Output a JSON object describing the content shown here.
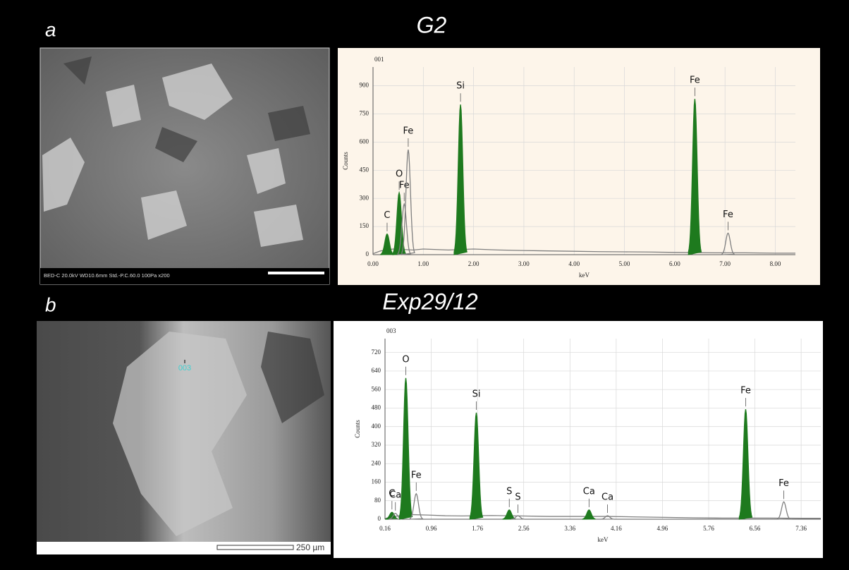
{
  "panels": [
    {
      "letter": "a",
      "title": "G2",
      "image_caption": "BED-C  20.0kV   WD10.6mm   Std.-P.C.60.0    100Pa      x200"
    },
    {
      "letter": "b",
      "title": "Exp29/12",
      "image_point": "003",
      "image_scale": "250 µm"
    }
  ],
  "chart_data": [
    {
      "type": "spectrum",
      "tag": "001",
      "x_label": "keV",
      "y_label": "Counts",
      "color": "#808080",
      "x": [
        0,
        0.15,
        0.4,
        0.8,
        1.0,
        1.5,
        2.0,
        2.5,
        3.0,
        3.5,
        4.0,
        4.5,
        5.0,
        5.5,
        6.0,
        6.8,
        7.4,
        8.0,
        8.4
      ],
      "values": [
        5,
        20,
        30,
        25,
        30,
        25,
        30,
        25,
        22,
        20,
        18,
        16,
        15,
        14,
        12,
        10,
        10,
        8,
        8
      ],
      "peaks": [
        {
          "label": "C",
          "x": 0.28,
          "y": 110,
          "color": "#1e7a1e"
        },
        {
          "label": "O",
          "x": 0.52,
          "y": 330,
          "color": "#1e7a1e"
        },
        {
          "label": "Fe",
          "x": 0.62,
          "y": 270,
          "color": "#808080"
        },
        {
          "label": "Fe",
          "x": 0.7,
          "y": 560,
          "color": "#808080"
        },
        {
          "label": "Si",
          "x": 1.74,
          "y": 800,
          "color": "#1e7a1e"
        },
        {
          "label": "Fe",
          "x": 6.4,
          "y": 830,
          "color": "#1e7a1e"
        },
        {
          "label": "Fe",
          "x": 7.06,
          "y": 115,
          "color": "#808080"
        }
      ],
      "xlim": [
        0,
        8.4
      ],
      "ylim": [
        0,
        1000
      ],
      "xticks": [
        {
          "value": 0,
          "label": "0.00"
        },
        {
          "value": 1,
          "label": "1.00"
        },
        {
          "value": 2,
          "label": "2.00"
        },
        {
          "value": 3,
          "label": "3.00"
        },
        {
          "value": 4,
          "label": "4.00"
        },
        {
          "value": 5,
          "label": "5.00"
        },
        {
          "value": 6,
          "label": "6.00"
        },
        {
          "value": 7,
          "label": "7.00"
        },
        {
          "value": 8,
          "label": "8.00"
        }
      ],
      "yticks": [
        0,
        150,
        300,
        450,
        600,
        750,
        900
      ],
      "grid": true
    },
    {
      "type": "spectrum",
      "tag": "003",
      "x_label": "keV",
      "y_label": "Counts",
      "color": "#808080",
      "x": [
        0.16,
        0.3,
        0.6,
        0.9,
        1.2,
        1.5,
        2.0,
        2.5,
        3.0,
        3.5,
        4.0,
        4.5,
        5.0,
        5.5,
        6.0,
        6.8,
        7.4,
        7.7
      ],
      "values": [
        3,
        12,
        20,
        18,
        15,
        14,
        16,
        14,
        12,
        12,
        12,
        10,
        8,
        6,
        5,
        5,
        4,
        4
      ],
      "peaks": [
        {
          "label": "C",
          "x": 0.28,
          "y": 30,
          "color": "#1e7a1e"
        },
        {
          "label": "Ca",
          "x": 0.34,
          "y": 25,
          "color": "#808080"
        },
        {
          "label": "O",
          "x": 0.52,
          "y": 610,
          "color": "#1e7a1e"
        },
        {
          "label": "Fe",
          "x": 0.7,
          "y": 110,
          "color": "#808080"
        },
        {
          "label": "Si",
          "x": 1.74,
          "y": 460,
          "color": "#1e7a1e"
        },
        {
          "label": "S",
          "x": 2.31,
          "y": 40,
          "color": "#1e7a1e"
        },
        {
          "label": "S",
          "x": 2.46,
          "y": 15,
          "color": "#808080"
        },
        {
          "label": "Ca",
          "x": 3.69,
          "y": 40,
          "color": "#1e7a1e"
        },
        {
          "label": "Ca",
          "x": 4.01,
          "y": 15,
          "color": "#808080"
        },
        {
          "label": "Fe",
          "x": 6.4,
          "y": 475,
          "color": "#1e7a1e"
        },
        {
          "label": "Fe",
          "x": 7.06,
          "y": 75,
          "color": "#808080"
        }
      ],
      "xlim": [
        0.16,
        7.7
      ],
      "ylim": [
        0,
        780
      ],
      "xticks": [
        {
          "value": 0.16,
          "label": "0.16"
        },
        {
          "value": 0.96,
          "label": "0.96"
        },
        {
          "value": 1.76,
          "label": "1.76"
        },
        {
          "value": 2.56,
          "label": "2.56"
        },
        {
          "value": 3.36,
          "label": "3.36"
        },
        {
          "value": 4.16,
          "label": "4.16"
        },
        {
          "value": 4.96,
          "label": "4.96"
        },
        {
          "value": 5.76,
          "label": "5.76"
        },
        {
          "value": 6.56,
          "label": "6.56"
        },
        {
          "value": 7.36,
          "label": "7.36"
        }
      ],
      "yticks": [
        0,
        80,
        160,
        240,
        320,
        400,
        480,
        560,
        640,
        720
      ],
      "grid": true
    }
  ]
}
